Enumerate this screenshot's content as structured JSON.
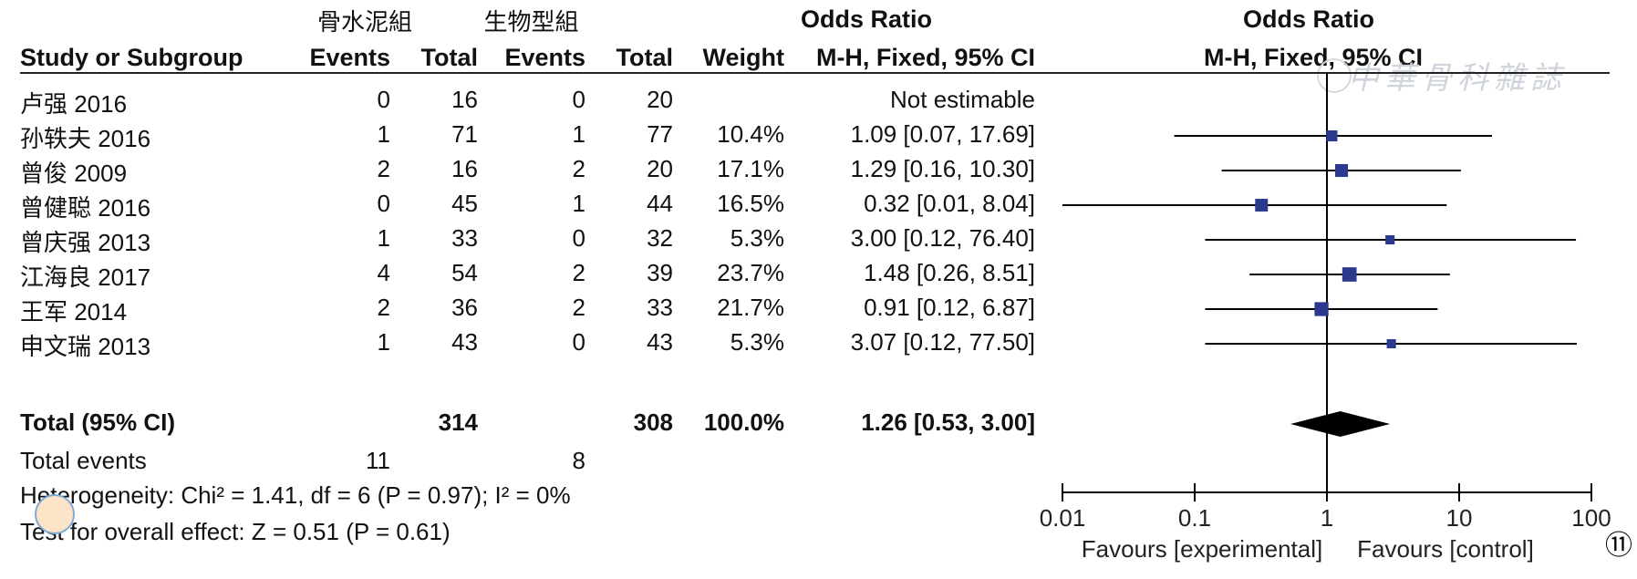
{
  "table": {
    "group_headers": {
      "experimental": "骨水泥組",
      "control": "生物型組",
      "odds_ratio": "Odds Ratio",
      "plot_odds_ratio": "Odds Ratio"
    },
    "column_headers": {
      "study": "Study or Subgroup",
      "exp_events": "Events",
      "exp_total": "Total",
      "ctrl_events": "Events",
      "ctrl_total": "Total",
      "weight": "Weight",
      "or_method": "M-H, Fixed, 95% CI",
      "plot_method": "M-H, Fixed, 95% CI"
    },
    "rows": [
      {
        "study": "卢强 2016",
        "exp_events": "0",
        "exp_total": "16",
        "ctrl_events": "0",
        "ctrl_total": "20",
        "weight": "",
        "or_text": "Not estimable"
      },
      {
        "study": "孙轶夫 2016",
        "exp_events": "1",
        "exp_total": "71",
        "ctrl_events": "1",
        "ctrl_total": "77",
        "weight": "10.4%",
        "or_text": "1.09 [0.07, 17.69]"
      },
      {
        "study": "曾俊 2009",
        "exp_events": "2",
        "exp_total": "16",
        "ctrl_events": "2",
        "ctrl_total": "20",
        "weight": "17.1%",
        "or_text": "1.29 [0.16, 10.30]"
      },
      {
        "study": "曾健聪 2016",
        "exp_events": "0",
        "exp_total": "45",
        "ctrl_events": "1",
        "ctrl_total": "44",
        "weight": "16.5%",
        "or_text": "0.32 [0.01, 8.04]"
      },
      {
        "study": "曾庆强 2013",
        "exp_events": "1",
        "exp_total": "33",
        "ctrl_events": "0",
        "ctrl_total": "32",
        "weight": "5.3%",
        "or_text": "3.00 [0.12, 76.40]"
      },
      {
        "study": "江海良 2017",
        "exp_events": "4",
        "exp_total": "54",
        "ctrl_events": "2",
        "ctrl_total": "39",
        "weight": "23.7%",
        "or_text": "1.48 [0.26, 8.51]"
      },
      {
        "study": "王军 2014",
        "exp_events": "2",
        "exp_total": "36",
        "ctrl_events": "2",
        "ctrl_total": "33",
        "weight": "21.7%",
        "or_text": "0.91 [0.12, 6.87]"
      },
      {
        "study": "申文瑞 2013",
        "exp_events": "1",
        "exp_total": "43",
        "ctrl_events": "0",
        "ctrl_total": "43",
        "weight": "5.3%",
        "or_text": "3.07 [0.12, 77.50]"
      }
    ],
    "total": {
      "label": "Total (95% CI)",
      "exp_total": "314",
      "ctrl_total": "308",
      "weight": "100.0%",
      "or_text": "1.26 [0.53, 3.00]"
    },
    "total_events": {
      "label": "Total events",
      "exp_events": "11",
      "ctrl_events": "8"
    },
    "heterogeneity": "Heterogeneity: Chi² = 1.41, df = 6 (P = 0.97); I² = 0%",
    "overall_effect": "Test for overall effect: Z = 0.51 (P = 0.61)"
  },
  "chart_data": {
    "type": "forest",
    "scale": "log",
    "xlim": [
      0.01,
      100
    ],
    "ticks": [
      "0.01",
      "0.1",
      "1",
      "10",
      "100"
    ],
    "reference_line": 1,
    "favours_left": "Favours [experimental]",
    "favours_right": "Favours [control]",
    "studies": [
      {
        "name": "孙轶夫 2016",
        "or": 1.09,
        "lo": 0.07,
        "hi": 17.69,
        "weight": 10.4
      },
      {
        "name": "曾俊 2009",
        "or": 1.29,
        "lo": 0.16,
        "hi": 10.3,
        "weight": 17.1
      },
      {
        "name": "曾健聪 2016",
        "or": 0.32,
        "lo": 0.01,
        "hi": 8.04,
        "weight": 16.5
      },
      {
        "name": "曾庆强 2013",
        "or": 3.0,
        "lo": 0.12,
        "hi": 76.4,
        "weight": 5.3
      },
      {
        "name": "江海良 2017",
        "or": 1.48,
        "lo": 0.26,
        "hi": 8.51,
        "weight": 23.7
      },
      {
        "name": "王军 2014",
        "or": 0.91,
        "lo": 0.12,
        "hi": 6.87,
        "weight": 21.7
      },
      {
        "name": "申文瑞 2013",
        "or": 3.07,
        "lo": 0.12,
        "hi": 77.5,
        "weight": 5.3
      }
    ],
    "pooled": {
      "or": 1.26,
      "lo": 0.53,
      "hi": 3.0
    },
    "marker_color": "#2b3a8f"
  },
  "figure_label": "⑪",
  "watermark_text": "中華骨科雜誌"
}
